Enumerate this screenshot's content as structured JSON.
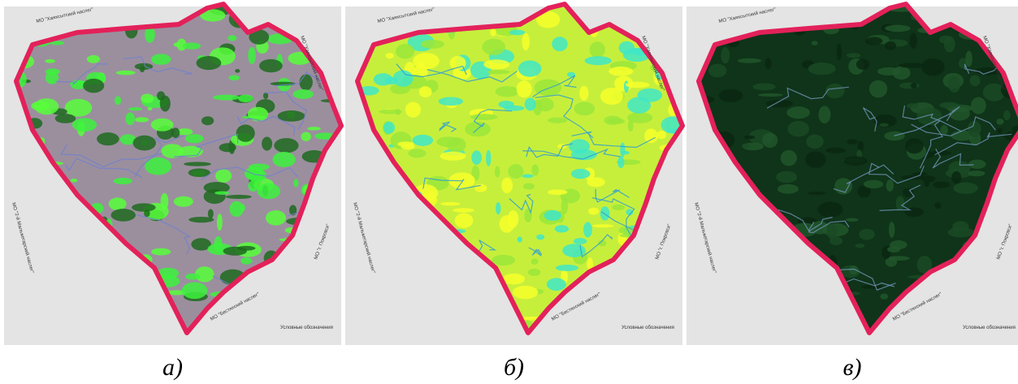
{
  "panels": [
    {
      "caption": "а)",
      "labels": {
        "top": "МО \"Хаяхсытский наслег\"",
        "right": "МО \"Хаяхсытский наслег\"",
        "left": "МО \"2-й Мальжегарский наслег\"",
        "bottom": "МО \"Бестяхский наслег\"",
        "lower_right": "МО \"г. Покровск\"",
        "legend": "Условные обозначения"
      }
    },
    {
      "caption": "б)",
      "labels": {
        "top": "МО \"Хаяхсытский наслег\"",
        "right": "МО \"Хаяхсытский наслег\"",
        "left": "МО \"2-й Мальжегарский наслег\"",
        "bottom": "МО \"Бестяхский наслег\"",
        "lower_right": "МО \"г. Покровск\"",
        "legend": "Условные обозначения"
      }
    },
    {
      "caption": "в)",
      "labels": {
        "top": "МО \"Хаяхсытский наслег\"",
        "right": "МО \"Хаяхсытский наслег\"",
        "left": "МО \"2-й Мальжегарский наслег\"",
        "bottom": "МО \"Бестяхский наслег\"",
        "lower_right": "МО \"г. Покровск\"",
        "legend": "Условные обозначения"
      }
    }
  ]
}
